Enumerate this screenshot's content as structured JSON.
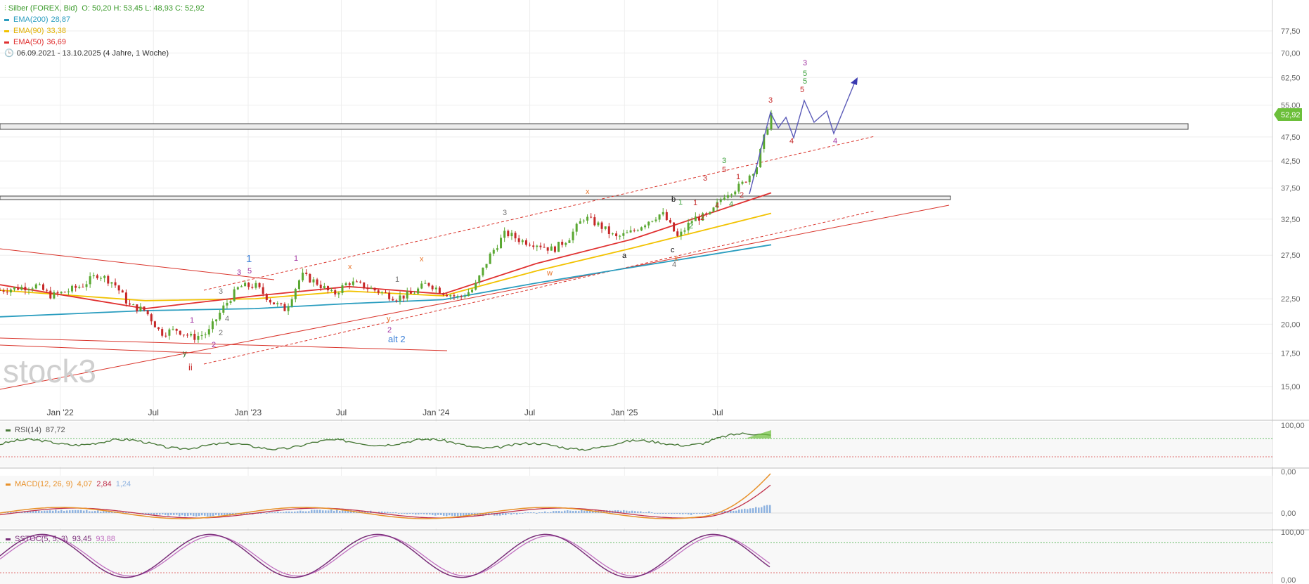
{
  "header": {
    "instrument": "Silber (FOREX, Bid)",
    "ohlc": "O: 50,20   H: 53,45   L: 48,93   C: 52,92",
    "ema200_label": "EMA(200)",
    "ema200_value": "28,87",
    "ema90_label": "EMA(90)",
    "ema90_value": "33,38",
    "ema50_label": "EMA(50)",
    "ema50_value": "36,69",
    "range": "06.09.2021 - 13.10.2025   (4 Jahre, 1 Woche)"
  },
  "watermark": "stock3",
  "colors": {
    "ema200": "#2a9dbf",
    "ema90": "#f2c200",
    "ema50": "#e03030",
    "price_tag": "#6cbf3a",
    "candle_up": "#5aa832",
    "candle_down": "#c62828",
    "rsi": "#4a7a3a",
    "macd": "#e8912a",
    "macd_signal": "#c0304a",
    "macd_hist": "#8fb3e0",
    "stoch_k": "#7a2f7a",
    "stoch_d": "#c070c0"
  },
  "price_axis": {
    "ticks": [
      "77,50",
      "70,00",
      "62,50",
      "55,00",
      "47,50",
      "42,50",
      "37,50",
      "32,50",
      "27,50",
      "22,50",
      "20,00",
      "17,50",
      "15,00"
    ],
    "last_price": "52,92"
  },
  "time_axis": {
    "ticks": [
      "Jan '22",
      "Jul",
      "Jan '23",
      "Jul",
      "Jan '24",
      "Jul",
      "Jan '25",
      "Jul"
    ]
  },
  "chart_data": [
    {
      "type": "line",
      "title": "Silber (FOREX, Bid)",
      "scale": "log",
      "x_range": [
        "2021-09-06",
        "2025-10-13"
      ],
      "ylim": [
        13.5,
        82
      ],
      "series": [
        {
          "name": "Silber",
          "x": [
            "2021-09",
            "2021-10",
            "2021-11",
            "2021-12",
            "2022-01",
            "2022-02",
            "2022-03",
            "2022-04",
            "2022-05",
            "2022-06",
            "2022-07",
            "2022-08",
            "2022-09",
            "2022-10",
            "2022-11",
            "2022-12",
            "2023-01",
            "2023-02",
            "2023-03",
            "2023-04",
            "2023-05",
            "2023-06",
            "2023-07",
            "2023-08",
            "2023-09",
            "2023-10",
            "2023-11",
            "2023-12",
            "2024-01",
            "2024-02",
            "2024-03",
            "2024-04",
            "2024-05",
            "2024-06",
            "2024-07",
            "2024-08",
            "2024-09",
            "2024-10",
            "2024-11",
            "2024-12",
            "2025-01",
            "2025-02",
            "2025-03",
            "2025-04",
            "2025-05",
            "2025-06",
            "2025-07",
            "2025-08",
            "2025-09",
            "2025-10"
          ],
          "values": [
            23.4,
            23.7,
            23.9,
            22.8,
            23.3,
            24.0,
            25.2,
            24.2,
            21.8,
            21.3,
            19.2,
            19.5,
            18.8,
            19.2,
            21.7,
            23.8,
            23.9,
            22.2,
            21.4,
            25.1,
            24.2,
            22.9,
            24.3,
            23.8,
            23.2,
            22.6,
            23.0,
            24.2,
            23.2,
            22.6,
            23.6,
            27.5,
            30.5,
            29.4,
            29.0,
            28.2,
            29.8,
            32.8,
            31.5,
            29.8,
            30.6,
            32.2,
            33.4,
            29.8,
            32.6,
            33.0,
            36.5,
            37.9,
            41.5,
            52.92
          ]
        },
        {
          "name": "EMA(200)",
          "x": [
            "2021-09",
            "2022-06",
            "2023-01",
            "2023-07",
            "2024-01",
            "2024-07",
            "2025-01",
            "2025-10"
          ],
          "values": [
            20.7,
            21.3,
            21.5,
            22.0,
            22.4,
            24.2,
            26.0,
            28.87
          ]
        },
        {
          "name": "EMA(90)",
          "x": [
            "2021-09",
            "2022-06",
            "2023-01",
            "2023-07",
            "2024-01",
            "2024-07",
            "2025-01",
            "2025-10"
          ],
          "values": [
            23.4,
            22.3,
            22.5,
            23.3,
            22.8,
            25.6,
            28.4,
            33.38
          ]
        },
        {
          "name": "EMA(50)",
          "x": [
            "2021-09",
            "2022-06",
            "2023-01",
            "2023-07",
            "2024-01",
            "2024-07",
            "2025-01",
            "2025-10"
          ],
          "values": [
            24.0,
            21.5,
            22.8,
            23.8,
            23.0,
            26.5,
            29.6,
            36.69
          ]
        }
      ],
      "annotations": [
        "1",
        "alt 2",
        "ii",
        "3",
        "5",
        "4",
        "a",
        "b",
        "c",
        "x",
        "y",
        "w"
      ]
    },
    {
      "type": "line",
      "title": "RSI(14)",
      "value": "87,72",
      "ylim": [
        0,
        100
      ],
      "ticks": [
        "100,00",
        "0,00"
      ]
    },
    {
      "type": "line",
      "title": "MACD(12, 26, 9)",
      "values": [
        "4,07",
        "2,84",
        "1,24"
      ],
      "ticks": [
        "0,00"
      ]
    },
    {
      "type": "line",
      "title": "SSTOC(5, 5, 3)",
      "values": [
        "93,45",
        "93,88"
      ],
      "ylim": [
        0,
        100
      ],
      "ticks": [
        "100,00",
        "0,00"
      ]
    }
  ],
  "indicators": {
    "rsi_label": "RSI(14)",
    "rsi_value": "87,72",
    "macd_label": "MACD(12, 26, 9)",
    "macd_v1": "4,07",
    "macd_v2": "2,84",
    "macd_v3": "1,24",
    "stoch_label": "SSTOC(5, 5, 3)",
    "stoch_v1": "93,45",
    "stoch_v2": "93,88",
    "axis_top": "100,00",
    "axis_bottom": "0,00",
    "axis_zero": "0,00"
  },
  "wave_labels": {
    "w_1_big": "1",
    "w_alt2": "alt 2",
    "w_ii": "ii",
    "w_3": "3",
    "w_4": "4",
    "w_5": "5",
    "w_1": "1",
    "w_2": "2",
    "w_a": "a",
    "w_b": "b",
    "w_c": "c",
    "w_x": "x",
    "w_y": "y",
    "w_w": "w"
  }
}
